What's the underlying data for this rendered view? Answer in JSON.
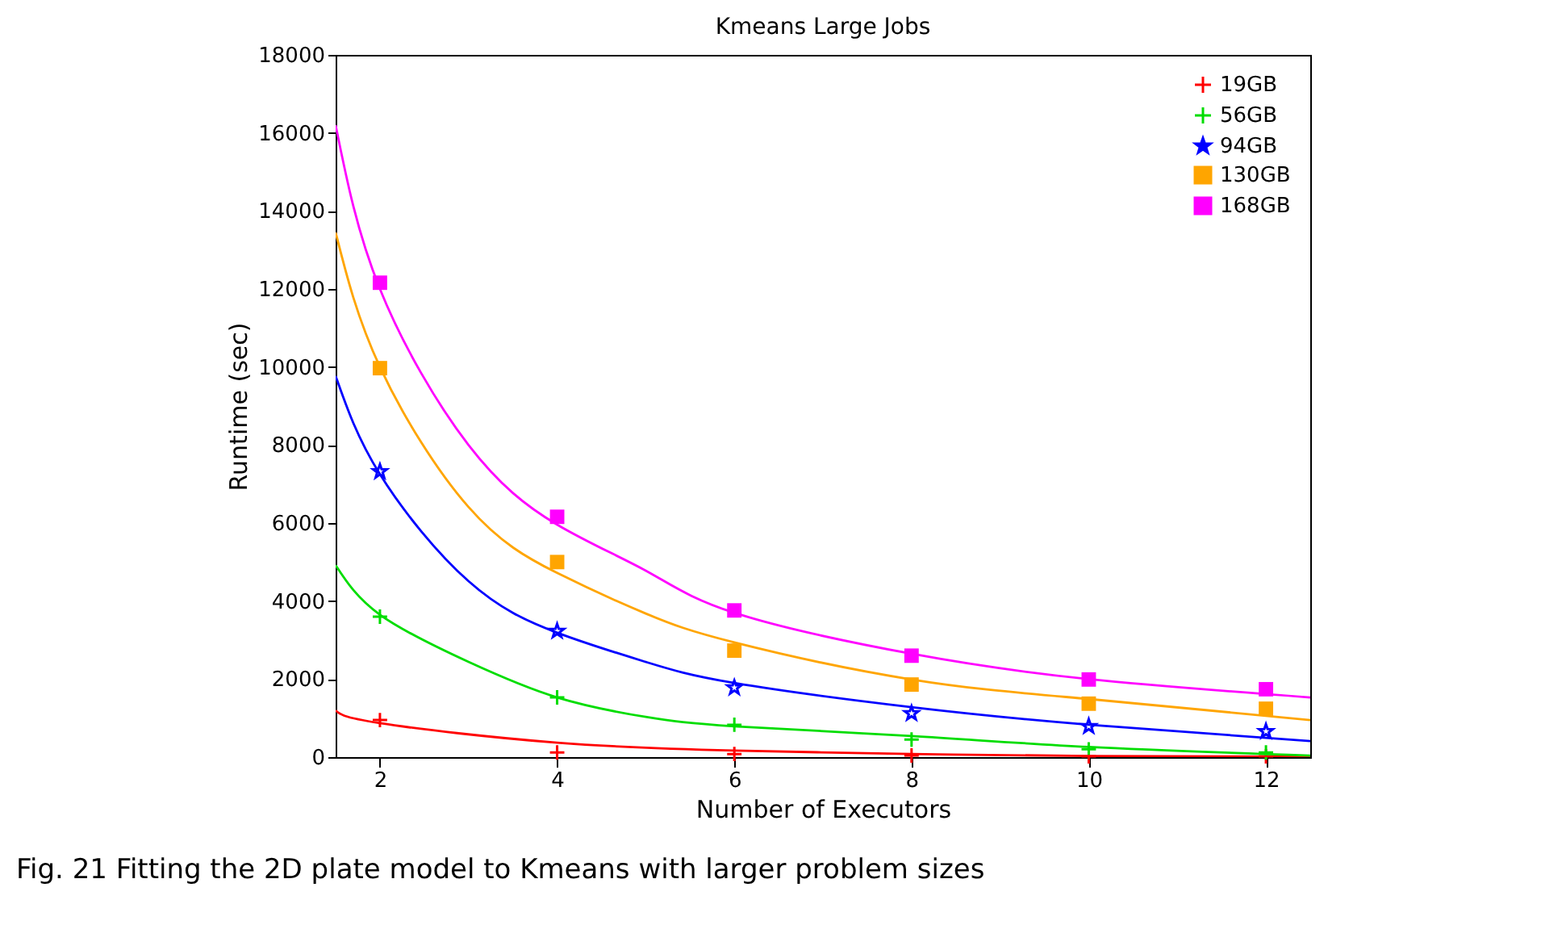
{
  "chart_data": {
    "type": "scatter",
    "title": "Kmeans Large Jobs",
    "xlabel": "Number of Executors",
    "ylabel": "Runtime (sec)",
    "xlim": [
      1.5,
      12.5
    ],
    "xticks": [
      2,
      4,
      6,
      8,
      10,
      12
    ],
    "ylim": [
      0,
      18000
    ],
    "yticks": [
      0,
      2000,
      4000,
      6000,
      8000,
      10000,
      12000,
      14000,
      16000,
      18000
    ],
    "grid": false,
    "legend": "top right",
    "annotations": [
      "Fig. 21  Fitting the 2D plate model to Kmeans with larger problem sizes"
    ],
    "x": [
      2,
      4,
      6,
      8,
      10,
      12
    ],
    "series": [
      {
        "name": "19GB",
        "color": "#ff0000",
        "marker": "cross",
        "values": [
          950,
          120,
          80,
          40,
          20,
          20
        ]
      },
      {
        "name": "56GB",
        "color": "#00dd00",
        "marker": "cross",
        "values": [
          3600,
          1530,
          830,
          450,
          200,
          120
        ]
      },
      {
        "name": "94GB",
        "color": "#0000ff",
        "marker": "star",
        "values": [
          7320,
          3230,
          1780,
          1120,
          790,
          660
        ]
      },
      {
        "name": "130GB",
        "color": "#ffa500",
        "marker": "square",
        "values": [
          9970,
          5000,
          2730,
          1860,
          1370,
          1240
        ]
      },
      {
        "name": "168GB",
        "color": "#ff00ff",
        "marker": "square",
        "values": [
          12160,
          6160,
          3760,
          2600,
          1990,
          1740
        ]
      },
      {
        "type": "line",
        "color": "#ff0000",
        "x": [
          1.5,
          2,
          4,
          6,
          8,
          10,
          12.5
        ],
        "values": [
          1200,
          870,
          370,
          170,
          80,
          30,
          10
        ]
      },
      {
        "type": "line",
        "color": "#00dd00",
        "x": [
          1.5,
          2,
          3,
          4,
          5,
          6,
          8,
          10,
          12.5
        ],
        "values": [
          4920,
          3650,
          2440,
          1530,
          1030,
          790,
          540,
          260,
          40
        ]
      },
      {
        "type": "line",
        "color": "#0000ff",
        "x": [
          1.5,
          2,
          3,
          4,
          5,
          6,
          8,
          10,
          12.5
        ],
        "values": [
          9770,
          7250,
          4510,
          3190,
          2440,
          1900,
          1280,
          830,
          410
        ]
      },
      {
        "type": "line",
        "color": "#ffa500",
        "x": [
          1.5,
          2,
          3,
          4,
          5,
          6,
          8,
          10,
          12.5
        ],
        "values": [
          13450,
          10000,
          6410,
          4720,
          3680,
          2940,
          1990,
          1490,
          950
        ]
      },
      {
        "type": "line",
        "color": "#ff00ff",
        "x": [
          1.5,
          2,
          3,
          4,
          5,
          6,
          8,
          10,
          12.5
        ],
        "values": [
          16200,
          12000,
          8000,
          5960,
          4780,
          3700,
          2650,
          2000,
          1530
        ]
      }
    ]
  }
}
